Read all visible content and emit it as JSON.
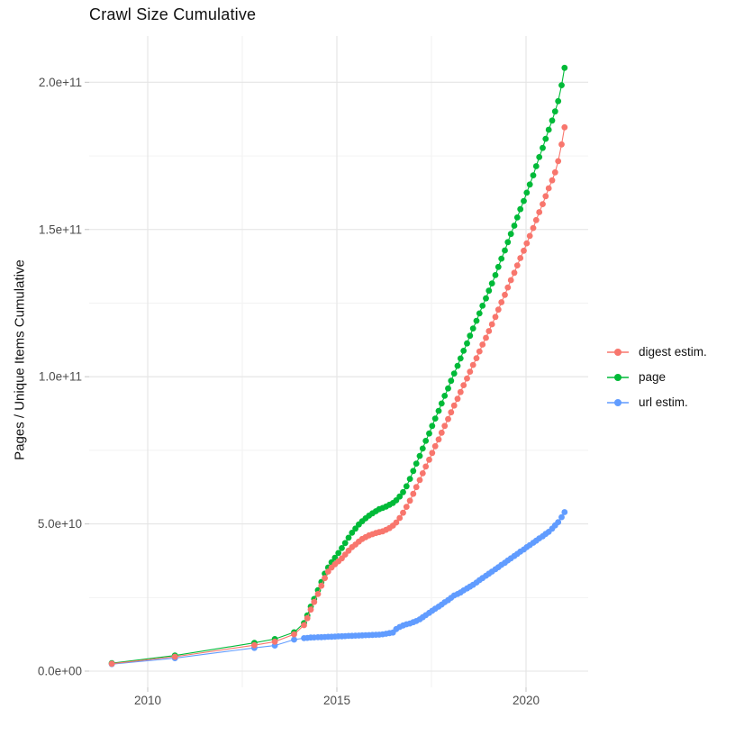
{
  "title": "Crawl Size Cumulative",
  "chart_data": {
    "type": "line",
    "title": "Crawl Size Cumulative",
    "xlabel": "",
    "ylabel": "Pages / Unique Items Cumulative",
    "value_unit": "billions of items (1e9)",
    "legend_position": "right",
    "grid": true,
    "x_years": [
      2009.05,
      2010.72,
      2012.82,
      2013.36,
      2013.87,
      2014.13,
      2014.22,
      2014.31,
      2014.4,
      2014.5,
      2014.59,
      2014.68,
      2014.77,
      2014.86,
      2014.95,
      2015.04,
      2015.13,
      2015.22,
      2015.31,
      2015.4,
      2015.49,
      2015.58,
      2015.67,
      2015.76,
      2015.85,
      2015.94,
      2016.03,
      2016.12,
      2016.21,
      2016.3,
      2016.39,
      2016.48,
      2016.57,
      2016.66,
      2016.75,
      2016.84,
      2016.93,
      2017.02,
      2017.1,
      2017.19,
      2017.27,
      2017.35,
      2017.44,
      2017.52,
      2017.6,
      2017.69,
      2017.77,
      2017.85,
      2017.94,
      2018.02,
      2018.1,
      2018.19,
      2018.27,
      2018.35,
      2018.44,
      2018.52,
      2018.6,
      2018.69,
      2018.77,
      2018.85,
      2018.94,
      2019.02,
      2019.1,
      2019.19,
      2019.27,
      2019.35,
      2019.44,
      2019.52,
      2019.6,
      2019.69,
      2019.77,
      2019.85,
      2019.94,
      2020.02,
      2020.1,
      2020.19,
      2020.27,
      2020.35,
      2020.44,
      2020.52,
      2020.6,
      2020.69,
      2020.77,
      2020.85,
      2020.94,
      2021.02
    ],
    "series": [
      {
        "name": "digest estim.",
        "color": "#F8766D",
        "values_billions": [
          2.5,
          4.9,
          8.8,
          10.0,
          12.5,
          15.6,
          18.0,
          20.9,
          23.5,
          26.2,
          29.0,
          31.6,
          33.8,
          35.2,
          36.3,
          37.3,
          38.3,
          39.6,
          40.9,
          42.1,
          43.0,
          44.0,
          44.9,
          45.5,
          46.1,
          46.5,
          46.9,
          47.2,
          47.5,
          48.0,
          48.6,
          49.4,
          50.5,
          52.0,
          53.8,
          55.8,
          57.9,
          60.2,
          62.5,
          64.9,
          67.2,
          69.5,
          71.8,
          74.1,
          76.4,
          78.7,
          81.0,
          83.3,
          85.6,
          87.9,
          90.2,
          92.5,
          94.8,
          97.1,
          99.4,
          101.7,
          104.0,
          106.3,
          108.6,
          110.9,
          113.2,
          115.5,
          117.8,
          120.3,
          122.8,
          125.3,
          127.8,
          130.3,
          132.8,
          135.3,
          137.8,
          140.3,
          142.8,
          145.3,
          147.8,
          150.5,
          153.2,
          155.9,
          158.6,
          161.3,
          164.0,
          166.7,
          169.4,
          173.2,
          178.9,
          184.7
        ]
      },
      {
        "name": "page",
        "color": "#00BA38",
        "values_billions": [
          2.7,
          5.3,
          9.6,
          10.9,
          13.2,
          16.3,
          18.9,
          21.9,
          24.5,
          27.5,
          30.3,
          33.1,
          35.2,
          37.0,
          38.5,
          40.1,
          41.8,
          43.5,
          45.3,
          47.0,
          48.4,
          49.8,
          50.9,
          51.9,
          52.8,
          53.6,
          54.3,
          55.0,
          55.4,
          55.9,
          56.5,
          57.1,
          58.0,
          59.3,
          60.8,
          62.8,
          65.3,
          68.0,
          70.5,
          73.1,
          75.6,
          78.2,
          80.7,
          83.3,
          85.8,
          88.4,
          90.9,
          93.5,
          96.0,
          98.6,
          101.1,
          103.7,
          106.2,
          108.8,
          111.3,
          113.9,
          116.4,
          119.0,
          121.5,
          124.1,
          126.6,
          129.2,
          131.7,
          134.5,
          137.3,
          140.1,
          142.9,
          145.7,
          148.5,
          151.3,
          154.1,
          156.9,
          159.7,
          162.5,
          165.3,
          168.4,
          171.5,
          174.6,
          177.7,
          180.8,
          183.9,
          187.0,
          190.1,
          193.6,
          199.0,
          204.9
        ]
      },
      {
        "name": "url estim.",
        "color": "#619CFF",
        "values_billions": [
          2.4,
          4.4,
          7.9,
          8.7,
          10.7,
          11.2,
          11.3,
          11.4,
          11.45,
          11.5,
          11.55,
          11.6,
          11.65,
          11.7,
          11.75,
          11.8,
          11.85,
          11.9,
          11.95,
          12.0,
          12.05,
          12.1,
          12.15,
          12.2,
          12.25,
          12.3,
          12.35,
          12.4,
          12.5,
          12.7,
          12.9,
          13.1,
          14.3,
          15.0,
          15.5,
          15.9,
          16.2,
          16.6,
          17.0,
          17.6,
          18.3,
          19.0,
          19.8,
          20.5,
          21.2,
          21.9,
          22.6,
          23.4,
          24.1,
          24.9,
          25.7,
          26.2,
          26.7,
          27.4,
          28.1,
          28.7,
          29.3,
          30.1,
          30.9,
          31.6,
          32.4,
          33.1,
          33.8,
          34.6,
          35.3,
          36.1,
          36.8,
          37.6,
          38.3,
          39.1,
          39.8,
          40.6,
          41.3,
          42.1,
          42.8,
          43.6,
          44.3,
          45.1,
          45.8,
          46.6,
          47.3,
          48.4,
          49.5,
          50.6,
          52.3,
          54.0
        ]
      }
    ],
    "draw_order": [
      2,
      1,
      0
    ],
    "x_axis": {
      "range_years": [
        2008.45,
        2021.6
      ],
      "ticks": [
        {
          "value": 2010,
          "label": "2010"
        },
        {
          "value": 2015,
          "label": "2015"
        },
        {
          "value": 2020,
          "label": "2020"
        }
      ],
      "minor_ticks": [
        2012.5,
        2017.5
      ]
    },
    "y_axis": {
      "range_billions": [
        -6,
        221
      ],
      "ticks": [
        {
          "value_billions": 0,
          "label": "0.0e+00"
        },
        {
          "value_billions": 50,
          "label": "5.0e+10"
        },
        {
          "value_billions": 100,
          "label": "1.0e+11"
        },
        {
          "value_billions": 150,
          "label": "1.5e+11"
        },
        {
          "value_billions": 200,
          "label": "2.0e+11"
        }
      ],
      "minor_ticks_billions": [
        25,
        75,
        125,
        175
      ]
    },
    "colors": {
      "grid_major": "#e4e4e4",
      "grid_minor": "#f1f1f1",
      "tick_mark": "#c9c9c9",
      "tick_label": "#4d4d4d",
      "text": "#111111"
    }
  }
}
